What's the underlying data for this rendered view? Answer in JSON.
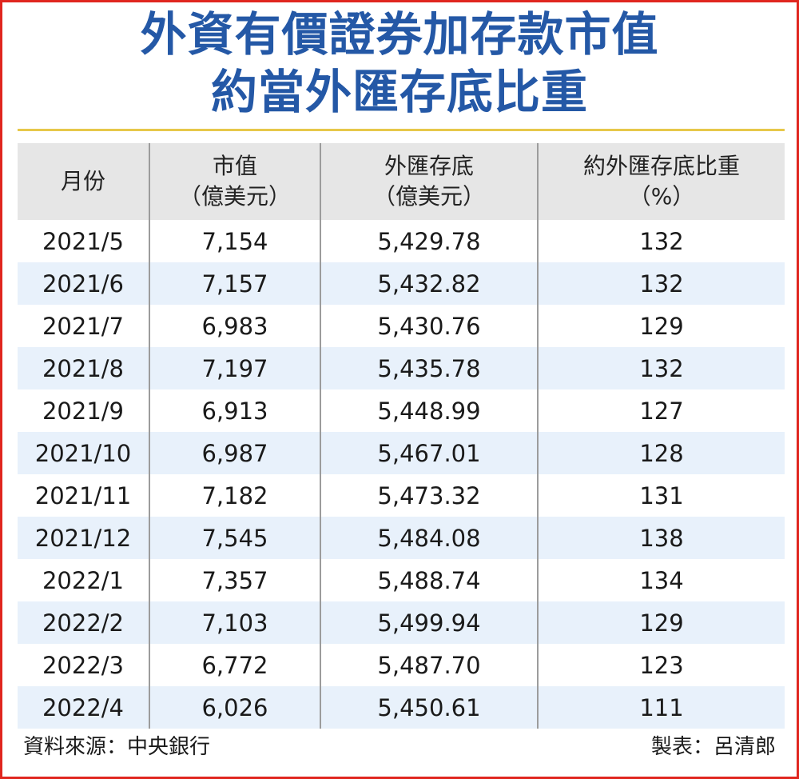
{
  "title": {
    "line1": "外資有價證券加存款市值",
    "line2": "約當外匯存底比重"
  },
  "chart_data": {
    "type": "table",
    "columns": [
      {
        "line1": "月份",
        "line2": ""
      },
      {
        "line1": "市值",
        "line2": "（億美元）"
      },
      {
        "line1": "外匯存底",
        "line2": "（億美元）"
      },
      {
        "line1": "約外匯存底比重",
        "line2": "（%）"
      }
    ],
    "rows": [
      [
        "2021/5",
        "7,154",
        "5,429.78",
        "132"
      ],
      [
        "2021/6",
        "7,157",
        "5,432.82",
        "132"
      ],
      [
        "2021/7",
        "6,983",
        "5,430.76",
        "129"
      ],
      [
        "2021/8",
        "7,197",
        "5,435.78",
        "132"
      ],
      [
        "2021/9",
        "6,913",
        "5,448.99",
        "127"
      ],
      [
        "2021/10",
        "6,987",
        "5,467.01",
        "128"
      ],
      [
        "2021/11",
        "7,182",
        "5,473.32",
        "131"
      ],
      [
        "2021/12",
        "7,545",
        "5,484.08",
        "138"
      ],
      [
        "2022/1",
        "7,357",
        "5,488.74",
        "134"
      ],
      [
        "2022/2",
        "7,103",
        "5,499.94",
        "129"
      ],
      [
        "2022/3",
        "6,772",
        "5,487.70",
        "123"
      ],
      [
        "2022/4",
        "6,026",
        "5,450.61",
        "111"
      ]
    ]
  },
  "footer": {
    "source": "資料來源：中央銀行",
    "author": "製表：呂清郎"
  },
  "colors": {
    "title": "#2458a6",
    "frame": "#e0261f",
    "rule": "#e7c84a",
    "header_bg": "#e6e6e6",
    "stripe": "#e8f1fb"
  }
}
